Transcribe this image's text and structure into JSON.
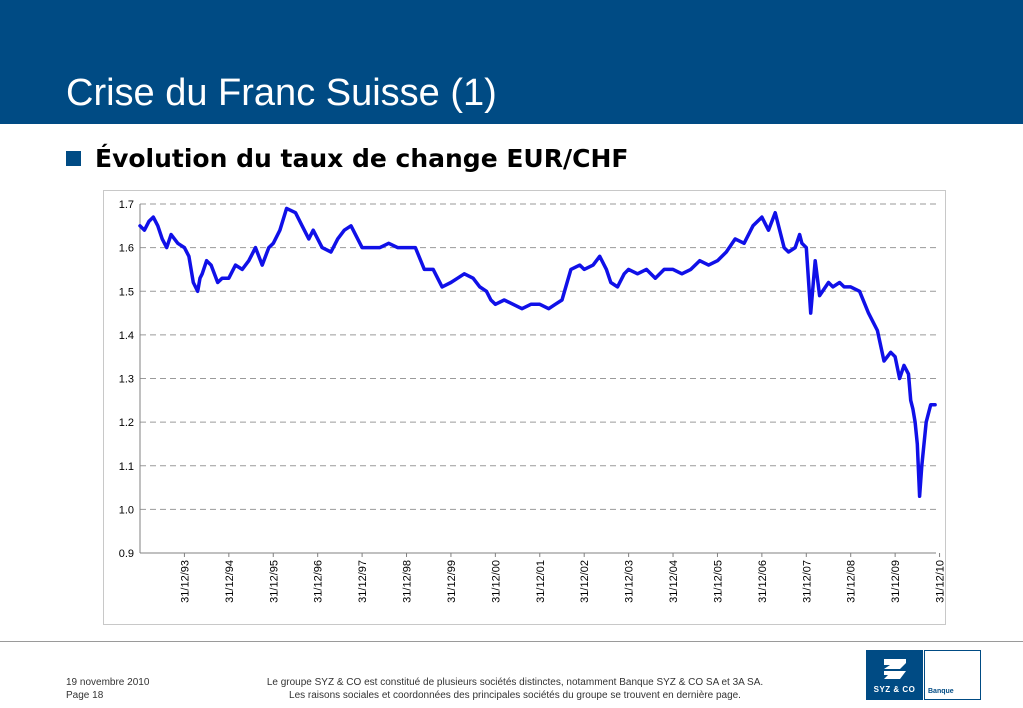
{
  "slide": {
    "title": "Crise du Franc Suisse (1)",
    "bullet": "Évolution du taux de change EUR/CHF"
  },
  "footer": {
    "date": "19 novembre 2010",
    "page": "Page 18",
    "disclaimer_line1": "Le groupe SYZ & CO est constitué de plusieurs sociétés distinctes, notamment Banque SYZ & CO SA et 3A SA.",
    "disclaimer_line2": "Les raisons sociales et coordonnées des principales sociétés du groupe se trouvent en dernière page."
  },
  "logo": {
    "name": "SYZ & CO",
    "subtitle": "Banque"
  },
  "colors": {
    "header": "#004b84",
    "line": "#1010e8",
    "grid": "#9a9a9a"
  },
  "chart_data": {
    "type": "line",
    "title": "",
    "xlabel": "",
    "ylabel": "",
    "ylim": [
      0.9,
      1.7
    ],
    "yticks": [
      0.9,
      1.0,
      1.1,
      1.2,
      1.3,
      1.4,
      1.5,
      1.6,
      1.7
    ],
    "ytick_labels": [
      "0.9",
      "1.0",
      "1.1",
      "1.2",
      "1.3",
      "1.4",
      "1.5",
      "1.6",
      "1.7"
    ],
    "xtick_labels": [
      "31/12/93",
      "31/12/94",
      "31/12/95",
      "31/12/96",
      "31/12/97",
      "31/12/98",
      "31/12/99",
      "31/12/00",
      "31/12/01",
      "31/12/02",
      "31/12/03",
      "31/12/04",
      "31/12/05",
      "31/12/06",
      "31/12/07",
      "31/12/08",
      "31/12/09",
      "31/12/10"
    ],
    "grid": "horizontal dashed",
    "legend": "none",
    "series": [
      {
        "x": [
          1993.0,
          1993.1,
          1993.2,
          1993.3,
          1993.4,
          1993.5,
          1993.6,
          1993.7,
          1993.85,
          1994.0,
          1994.1,
          1994.2,
          1994.3,
          1994.35,
          1994.4,
          1994.5,
          1994.6,
          1994.75,
          1994.85,
          1995.0,
          1995.15,
          1995.3,
          1995.45,
          1995.6,
          1995.75,
          1995.9,
          1996.0,
          1996.15,
          1996.3,
          1996.5,
          1996.65,
          1996.8,
          1996.9,
          1997.0,
          1997.1,
          1997.3,
          1997.45,
          1997.6,
          1997.75,
          1997.9,
          1998.0,
          1998.2,
          1998.4,
          1998.6,
          1998.8,
          1999.0,
          1999.2,
          1999.4,
          1999.6,
          1999.8,
          2000.0,
          2000.15,
          2000.3,
          2000.5,
          2000.65,
          2000.8,
          2000.9,
          2001.0,
          2001.2,
          2001.4,
          2001.6,
          2001.8,
          2002.0,
          2002.2,
          2002.35,
          2002.5,
          2002.7,
          2002.9,
          2003.0,
          2003.2,
          2003.35,
          2003.5,
          2003.6,
          2003.75,
          2003.9,
          2004.0,
          2004.2,
          2004.4,
          2004.6,
          2004.8,
          2005.0,
          2005.2,
          2005.4,
          2005.6,
          2005.8,
          2006.0,
          2006.2,
          2006.4,
          2006.6,
          2006.8,
          2007.0,
          2007.15,
          2007.3,
          2007.5,
          2007.6,
          2007.75,
          2007.85,
          2007.9,
          2008.0,
          2008.1,
          2008.2,
          2008.3,
          2008.5,
          2008.6,
          2008.75,
          2008.85,
          2009.0,
          2009.2,
          2009.4,
          2009.6,
          2009.75,
          2009.9,
          2010.0,
          2010.1,
          2010.2,
          2010.3,
          2010.35,
          2010.4,
          2010.45,
          2010.5,
          2010.55,
          2010.6,
          2010.7,
          2010.8,
          2010.9
        ],
        "y": [
          1.65,
          1.64,
          1.66,
          1.67,
          1.65,
          1.62,
          1.6,
          1.63,
          1.61,
          1.6,
          1.58,
          1.52,
          1.5,
          1.53,
          1.54,
          1.57,
          1.56,
          1.52,
          1.53,
          1.53,
          1.56,
          1.55,
          1.57,
          1.6,
          1.56,
          1.6,
          1.61,
          1.64,
          1.69,
          1.68,
          1.65,
          1.62,
          1.64,
          1.62,
          1.6,
          1.59,
          1.62,
          1.64,
          1.65,
          1.62,
          1.6,
          1.6,
          1.6,
          1.61,
          1.6,
          1.6,
          1.6,
          1.55,
          1.55,
          1.51,
          1.52,
          1.53,
          1.54,
          1.53,
          1.51,
          1.5,
          1.48,
          1.47,
          1.48,
          1.47,
          1.46,
          1.47,
          1.47,
          1.46,
          1.47,
          1.48,
          1.55,
          1.56,
          1.55,
          1.56,
          1.58,
          1.55,
          1.52,
          1.51,
          1.54,
          1.55,
          1.54,
          1.55,
          1.53,
          1.55,
          1.55,
          1.54,
          1.55,
          1.57,
          1.56,
          1.57,
          1.59,
          1.62,
          1.61,
          1.65,
          1.67,
          1.64,
          1.68,
          1.6,
          1.59,
          1.6,
          1.63,
          1.61,
          1.6,
          1.45,
          1.57,
          1.49,
          1.52,
          1.51,
          1.52,
          1.51,
          1.51,
          1.5,
          1.45,
          1.41,
          1.34,
          1.36,
          1.35,
          1.3,
          1.33,
          1.31,
          1.25,
          1.23,
          1.2,
          1.15,
          1.03,
          1.1,
          1.2,
          1.24,
          1.24
        ]
      }
    ]
  }
}
